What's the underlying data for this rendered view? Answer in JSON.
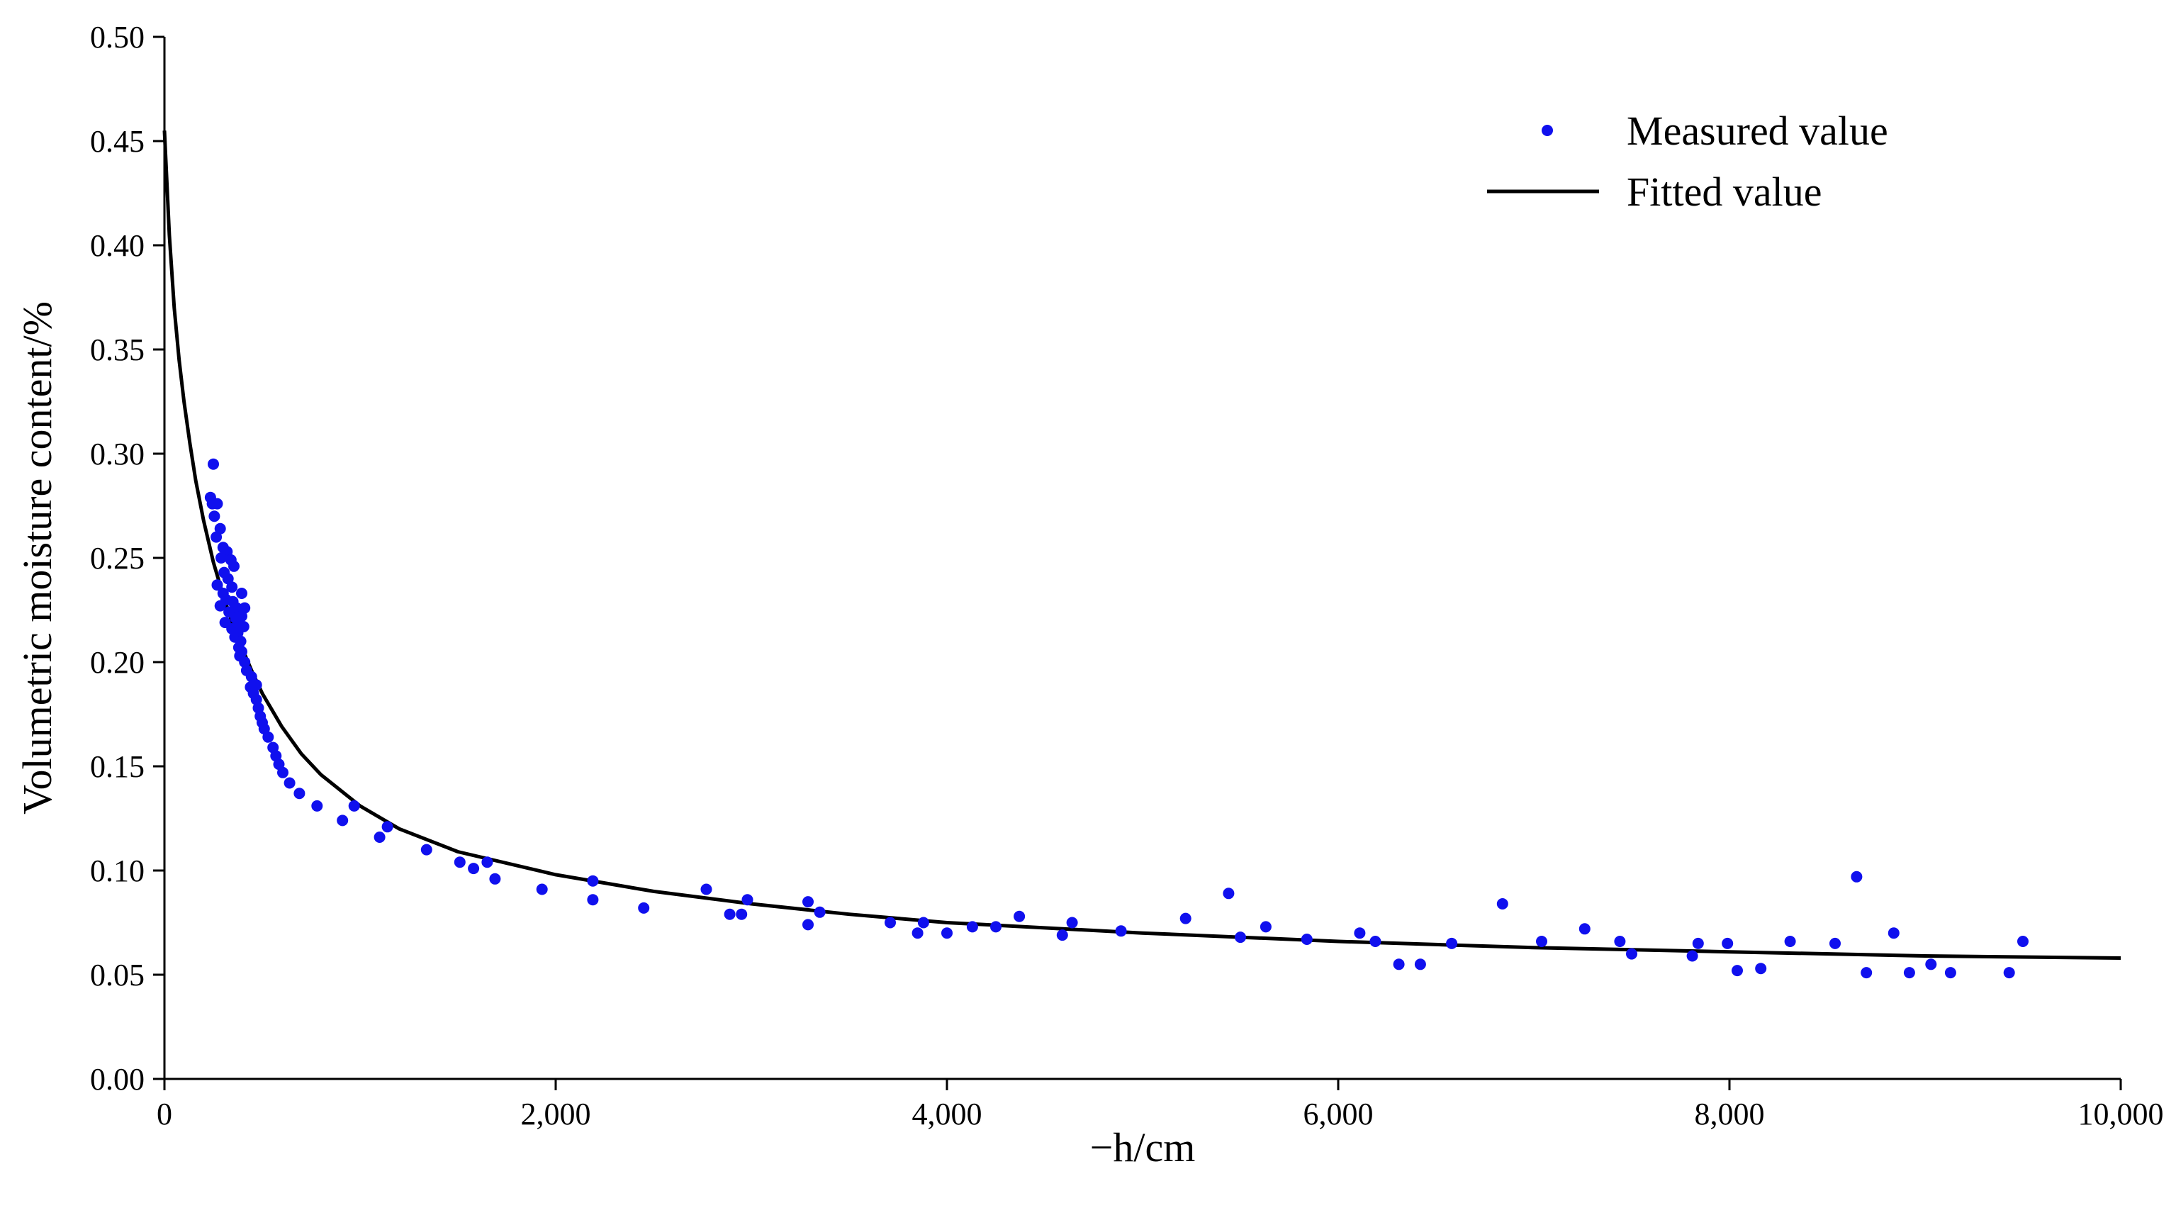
{
  "chart_data": {
    "type": "scatter",
    "title": "",
    "xlabel": "−h/cm",
    "ylabel": "Volumetric moisture content/%",
    "xlim": [
      0,
      10000
    ],
    "ylim": [
      0,
      0.5
    ],
    "x_ticks": [
      0,
      2000,
      4000,
      6000,
      8000,
      10000
    ],
    "x_tick_labels": [
      "0",
      "2,000",
      "4,000",
      "6,000",
      "8,000",
      "10,000"
    ],
    "y_ticks": [
      0,
      0.05,
      0.1,
      0.15,
      0.2,
      0.25,
      0.3,
      0.35,
      0.4,
      0.45,
      0.5
    ],
    "y_tick_labels": [
      "0.00",
      "0.05",
      "0.10",
      "0.15",
      "0.20",
      "0.25",
      "0.30",
      "0.35",
      "0.40",
      "0.45",
      "0.50"
    ],
    "grid": false,
    "legend_position": "top-right",
    "series": [
      {
        "name": "Measured value",
        "kind": "scatter",
        "color": "#1010ee",
        "points": [
          [
            250,
            0.295
          ],
          [
            235,
            0.279
          ],
          [
            245,
            0.276
          ],
          [
            270,
            0.276
          ],
          [
            255,
            0.27
          ],
          [
            285,
            0.264
          ],
          [
            265,
            0.26
          ],
          [
            300,
            0.255
          ],
          [
            320,
            0.253
          ],
          [
            290,
            0.25
          ],
          [
            340,
            0.249
          ],
          [
            355,
            0.246
          ],
          [
            305,
            0.243
          ],
          [
            325,
            0.24
          ],
          [
            270,
            0.237
          ],
          [
            345,
            0.236
          ],
          [
            300,
            0.233
          ],
          [
            395,
            0.233
          ],
          [
            315,
            0.23
          ],
          [
            350,
            0.229
          ],
          [
            285,
            0.227
          ],
          [
            370,
            0.226
          ],
          [
            410,
            0.226
          ],
          [
            330,
            0.224
          ],
          [
            395,
            0.222
          ],
          [
            365,
            0.221
          ],
          [
            310,
            0.219
          ],
          [
            380,
            0.218
          ],
          [
            405,
            0.217
          ],
          [
            345,
            0.216
          ],
          [
            375,
            0.214
          ],
          [
            360,
            0.212
          ],
          [
            390,
            0.21
          ],
          [
            380,
            0.207
          ],
          [
            395,
            0.205
          ],
          [
            385,
            0.203
          ],
          [
            410,
            0.2
          ],
          [
            420,
            0.196
          ],
          [
            445,
            0.193
          ],
          [
            470,
            0.189
          ],
          [
            440,
            0.188
          ],
          [
            455,
            0.185
          ],
          [
            470,
            0.182
          ],
          [
            480,
            0.178
          ],
          [
            490,
            0.174
          ],
          [
            500,
            0.171
          ],
          [
            510,
            0.168
          ],
          [
            530,
            0.164
          ],
          [
            555,
            0.159
          ],
          [
            570,
            0.155
          ],
          [
            585,
            0.151
          ],
          [
            605,
            0.147
          ],
          [
            640,
            0.142
          ],
          [
            690,
            0.137
          ],
          [
            780,
            0.131
          ],
          [
            970,
            0.131
          ],
          [
            1140,
            0.121
          ],
          [
            910,
            0.124
          ],
          [
            1100,
            0.116
          ],
          [
            1340,
            0.11
          ],
          [
            1510,
            0.104
          ],
          [
            1650,
            0.104
          ],
          [
            1580,
            0.101
          ],
          [
            1690,
            0.096
          ],
          [
            1930,
            0.091
          ],
          [
            2190,
            0.095
          ],
          [
            2190,
            0.086
          ],
          [
            2450,
            0.082
          ],
          [
            2770,
            0.091
          ],
          [
            2980,
            0.086
          ],
          [
            2890,
            0.079
          ],
          [
            2950,
            0.079
          ],
          [
            3290,
            0.085
          ],
          [
            3350,
            0.08
          ],
          [
            3290,
            0.074
          ],
          [
            3710,
            0.075
          ],
          [
            3880,
            0.075
          ],
          [
            3850,
            0.07
          ],
          [
            4000,
            0.07
          ],
          [
            4130,
            0.073
          ],
          [
            4250,
            0.073
          ],
          [
            4370,
            0.078
          ],
          [
            4640,
            0.075
          ],
          [
            4590,
            0.069
          ],
          [
            4890,
            0.071
          ],
          [
            5220,
            0.077
          ],
          [
            5440,
            0.089
          ],
          [
            5500,
            0.068
          ],
          [
            5630,
            0.073
          ],
          [
            5840,
            0.067
          ],
          [
            6110,
            0.07
          ],
          [
            6190,
            0.066
          ],
          [
            6310,
            0.055
          ],
          [
            6420,
            0.055
          ],
          [
            6580,
            0.065
          ],
          [
            6840,
            0.084
          ],
          [
            7040,
            0.066
          ],
          [
            7260,
            0.072
          ],
          [
            7440,
            0.066
          ],
          [
            7500,
            0.06
          ],
          [
            7810,
            0.059
          ],
          [
            7840,
            0.065
          ],
          [
            7990,
            0.065
          ],
          [
            8040,
            0.052
          ],
          [
            8160,
            0.053
          ],
          [
            8310,
            0.066
          ],
          [
            8540,
            0.065
          ],
          [
            8650,
            0.097
          ],
          [
            8700,
            0.051
          ],
          [
            8840,
            0.07
          ],
          [
            8920,
            0.051
          ],
          [
            9030,
            0.055
          ],
          [
            9130,
            0.051
          ],
          [
            9430,
            0.051
          ],
          [
            9500,
            0.066
          ]
        ]
      },
      {
        "name": "Fitted value",
        "kind": "line",
        "color": "#000000",
        "points": [
          [
            0,
            0.455
          ],
          [
            25,
            0.405
          ],
          [
            50,
            0.37
          ],
          [
            75,
            0.345
          ],
          [
            100,
            0.325
          ],
          [
            130,
            0.305
          ],
          [
            160,
            0.287
          ],
          [
            200,
            0.268
          ],
          [
            250,
            0.248
          ],
          [
            300,
            0.232
          ],
          [
            350,
            0.218
          ],
          [
            400,
            0.206
          ],
          [
            450,
            0.195
          ],
          [
            500,
            0.185
          ],
          [
            600,
            0.169
          ],
          [
            700,
            0.156
          ],
          [
            800,
            0.146
          ],
          [
            1000,
            0.131
          ],
          [
            1200,
            0.12
          ],
          [
            1500,
            0.109
          ],
          [
            2000,
            0.098
          ],
          [
            2500,
            0.09
          ],
          [
            3000,
            0.084
          ],
          [
            3500,
            0.079
          ],
          [
            4000,
            0.075
          ],
          [
            5000,
            0.07
          ],
          [
            6000,
            0.066
          ],
          [
            7000,
            0.063
          ],
          [
            8000,
            0.061
          ],
          [
            9000,
            0.059
          ],
          [
            10000,
            0.058
          ]
        ]
      }
    ]
  }
}
